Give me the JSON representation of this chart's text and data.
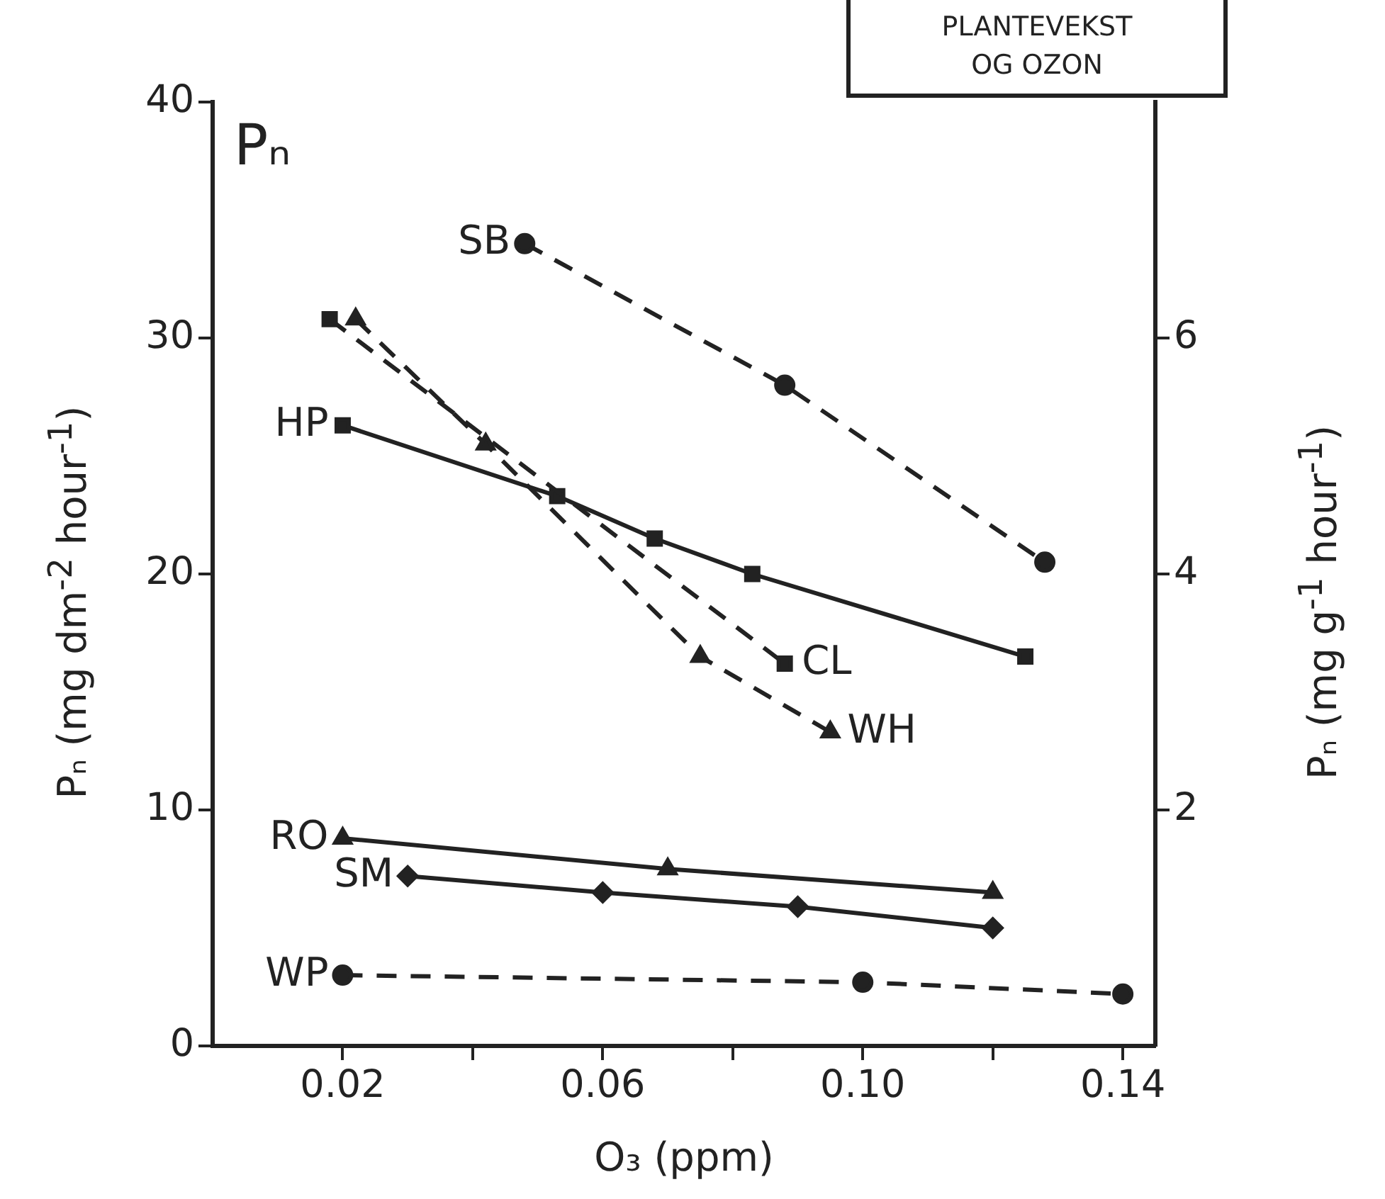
{
  "chart_data": {
    "type": "line",
    "xlabel": "O₃ (ppm)",
    "ylabel": "Pₙ (mg dm$^{-2}$ hour$^{-1}$)",
    "y2label": "Pₙ (mg g$^{-1}$ hour$^{-1}$)",
    "annotations": [
      "Pₙ",
      "PLANTEVEKST OG OZON"
    ],
    "xlim": [
      0,
      0.145
    ],
    "xticks": [
      {
        "value": 0.02,
        "label": "0.02"
      },
      {
        "value": 0.04,
        "label": null
      },
      {
        "value": 0.06,
        "label": "0.06"
      },
      {
        "value": 0.08,
        "label": null
      },
      {
        "value": 0.1,
        "label": "0.10"
      },
      {
        "value": 0.12,
        "label": null
      },
      {
        "value": 0.14,
        "label": "0.14"
      }
    ],
    "ylim": [
      0,
      40
    ],
    "yticks": [
      0,
      10,
      20,
      30,
      40
    ],
    "y2lim": [
      0,
      8
    ],
    "y2ticks": [
      2,
      4,
      6
    ],
    "grid": false,
    "legend": false,
    "series": [
      {
        "name": "SB",
        "color": "#222222",
        "x": [
          0.048,
          0.088,
          0.128
        ],
        "values": [
          34,
          28,
          20.5
        ],
        "marker": "circle",
        "line_style": "dashed"
      },
      {
        "name": "CL",
        "color": "#222222",
        "x": [
          0.018,
          0.088
        ],
        "values": [
          30.8,
          16.2
        ],
        "marker": "square",
        "line_style": "dashed"
      },
      {
        "name": "WH",
        "color": "#222222",
        "x": [
          0.022,
          0.042,
          0.075,
          0.095
        ],
        "values": [
          30.8,
          25.5,
          16.5,
          13.3
        ],
        "marker": "triangle",
        "line_style": "dashed"
      },
      {
        "name": "HP",
        "color": "#222222",
        "x": [
          0.02,
          0.053,
          0.068,
          0.083,
          0.125
        ],
        "values": [
          26.3,
          23.3,
          21.5,
          20,
          16.5
        ],
        "marker": "square",
        "line_style": "solid"
      },
      {
        "name": "RO",
        "color": "#222222",
        "x": [
          0.02,
          0.07,
          0.12
        ],
        "values": [
          8.8,
          7.5,
          6.5
        ],
        "marker": "triangle",
        "line_style": "solid"
      },
      {
        "name": "SM",
        "color": "#222222",
        "x": [
          0.03,
          0.06,
          0.09,
          0.12
        ],
        "values": [
          7.2,
          6.5,
          5.9,
          5
        ],
        "marker": "diamond",
        "line_style": "solid"
      },
      {
        "name": "WP",
        "color": "#222222",
        "x": [
          0.02,
          0.1,
          0.14
        ],
        "values": [
          3,
          2.7,
          2.2
        ],
        "marker": "circle",
        "line_style": "dashed"
      }
    ]
  }
}
